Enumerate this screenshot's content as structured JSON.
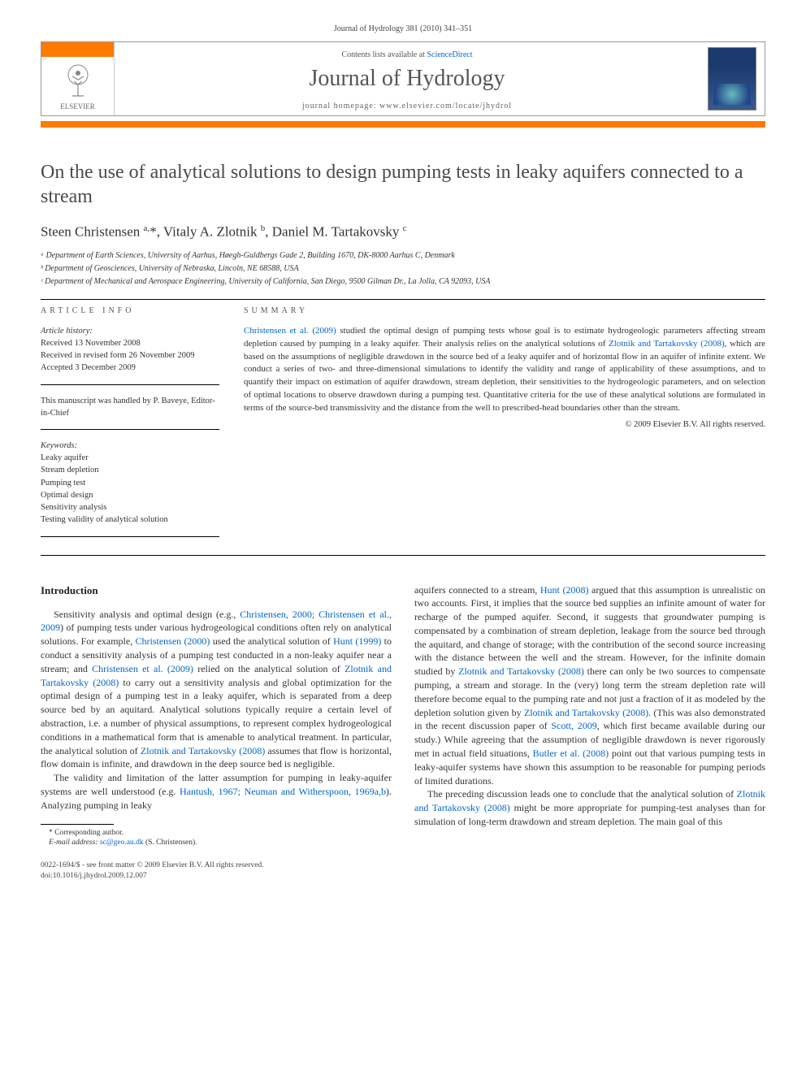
{
  "header": {
    "citation": "Journal of Hydrology 381 (2010) 341–351",
    "contents_prefix": "Contents lists available at ",
    "contents_link": "ScienceDirect",
    "journal_name": "Journal of Hydrology",
    "homepage_prefix": "journal homepage: ",
    "homepage_url": "www.elsevier.com/locate/jhydrol",
    "publisher_label": "ELSEVIER"
  },
  "article": {
    "title": "On the use of analytical solutions to design pumping tests in leaky aquifers connected to a stream",
    "authors_html": "Steen Christensen <sup>a,</sup>*, Vitaly A. Zlotnik <sup>b</sup>, Daniel M. Tartakovsky <sup>c</sup>",
    "affiliations": [
      "ᵃ Department of Earth Sciences, University of Aarhus, Høegh-Guldbergs Gade 2, Building 1670, DK-8000 Aarhus C, Denmark",
      "ᵇ Department of Geosciences, University of Nebraska, Lincoln, NE 68588, USA",
      "ᶜ Department of Mechanical and Aerospace Engineering, University of California, San Diego, 9500 Gilman Dr., La Jolla, CA 92093, USA"
    ]
  },
  "info": {
    "label": "ARTICLE INFO",
    "history_label": "Article history:",
    "history": [
      "Received 13 November 2008",
      "Received in revised form 26 November 2009",
      "Accepted 3 December 2009"
    ],
    "handled_by": "This manuscript was handled by P. Baveye, Editor-in-Chief",
    "keywords_label": "Keywords:",
    "keywords": [
      "Leaky aquifer",
      "Stream depletion",
      "Pumping test",
      "Optimal design",
      "Sensitivity analysis",
      "Testing validity of analytical solution"
    ]
  },
  "summary": {
    "label": "SUMMARY",
    "text_parts": [
      {
        "ref": true,
        "t": "Christensen et al. (2009)"
      },
      {
        "ref": false,
        "t": " studied the optimal design of pumping tests whose goal is to estimate hydrogeologic parameters affecting stream depletion caused by pumping in a leaky aquifer. Their analysis relies on the analytical solutions of "
      },
      {
        "ref": true,
        "t": "Zlotnik and Tartakovsky (2008)"
      },
      {
        "ref": false,
        "t": ", which are based on the assumptions of negligible drawdown in the source bed of a leaky aquifer and of horizontal flow in an aquifer of infinite extent. We conduct a series of two- and three-dimensional simulations to identify the validity and range of applicability of these assumptions, and to quantify their impact on estimation of aquifer drawdown, stream depletion, their sensitivities to the hydrogeologic parameters, and on selection of optimal locations to observe drawdown during a pumping test. Quantitative criteria for the use of these analytical solutions are formulated in terms of the source-bed transmissivity and the distance from the well to prescribed-head boundaries other than the stream."
      }
    ],
    "copyright": "© 2009 Elsevier B.V. All rights reserved."
  },
  "body": {
    "intro_heading": "Introduction",
    "p1": [
      {
        "ref": false,
        "t": "Sensitivity analysis and optimal design (e.g., "
      },
      {
        "ref": true,
        "t": "Christensen, 2000; Christensen et al., 2009"
      },
      {
        "ref": false,
        "t": ") of pumping tests under various hydrogeological conditions often rely on analytical solutions. For example, "
      },
      {
        "ref": true,
        "t": "Christensen (2000)"
      },
      {
        "ref": false,
        "t": " used the analytical solution of "
      },
      {
        "ref": true,
        "t": "Hunt (1999)"
      },
      {
        "ref": false,
        "t": " to conduct a sensitivity analysis of a pumping test conducted in a non-leaky aquifer near a stream; and "
      },
      {
        "ref": true,
        "t": "Christensen et al. (2009)"
      },
      {
        "ref": false,
        "t": " relied on the analytical solution of "
      },
      {
        "ref": true,
        "t": "Zlotnik and Tartakovsky (2008)"
      },
      {
        "ref": false,
        "t": " to carry out a sensitivity analysis and global optimization for the optimal design of a pumping test in a leaky aquifer, which is separated from a deep source bed by an aquitard. Analytical solutions typically require a certain level of abstraction, i.e. a number of physical assumptions, to represent complex hydrogeological conditions in a mathematical form that is amenable to analytical treatment. In particular, the analytical solution of "
      },
      {
        "ref": true,
        "t": "Zlotnik and Tartakovsky (2008)"
      },
      {
        "ref": false,
        "t": " assumes that flow is horizontal, flow domain is infinite, and drawdown in the deep source bed is negligible."
      }
    ],
    "p2": [
      {
        "ref": false,
        "t": "The validity and limitation of the latter assumption for pumping in leaky-aquifer systems are well understood (e.g. "
      },
      {
        "ref": true,
        "t": "Hantush, 1967; Neuman and Witherspoon, 1969a,b"
      },
      {
        "ref": false,
        "t": "). Analyzing pumping in leaky"
      }
    ],
    "p2b": [
      {
        "ref": false,
        "t": "aquifers connected to a stream, "
      },
      {
        "ref": true,
        "t": "Hunt (2008)"
      },
      {
        "ref": false,
        "t": " argued that this assumption is unrealistic on two accounts. First, it implies that the source bed supplies an infinite amount of water for recharge of the pumped aquifer. Second, it suggests that groundwater pumping is compensated by a combination of stream depletion, leakage from the source bed through the aquitard, and change of storage; with the contribution of the second source increasing with the distance between the well and the stream. However, for the infinite domain studied by "
      },
      {
        "ref": true,
        "t": "Zlotnik and Tartakovsky (2008)"
      },
      {
        "ref": false,
        "t": " there can only be two sources to compensate pumping, a stream and storage. In the (very) long term the stream depletion rate will therefore become equal to the pumping rate and not just a fraction of it as modeled by the depletion solution given by "
      },
      {
        "ref": true,
        "t": "Zlotnik and Tartakovsky (2008)"
      },
      {
        "ref": false,
        "t": ". (This was also demonstrated in the recent discussion paper of "
      },
      {
        "ref": true,
        "t": "Scott, 2009"
      },
      {
        "ref": false,
        "t": ", which first became available during our study.) While agreeing that the assumption of negligible drawdown is never rigorously met in actual field situations, "
      },
      {
        "ref": true,
        "t": "Butler et al. (2008)"
      },
      {
        "ref": false,
        "t": " point out that various pumping tests in leaky-aquifer systems have shown this assumption to be reasonable for pumping periods of limited durations."
      }
    ],
    "p3": [
      {
        "ref": false,
        "t": "The preceding discussion leads one to conclude that the analytical solution of "
      },
      {
        "ref": true,
        "t": "Zlotnik and Tartakovsky (2008)"
      },
      {
        "ref": false,
        "t": " might be more appropriate for pumping-test analyses than for simulation of long-term drawdown and stream depletion. The main goal of this"
      }
    ]
  },
  "footnote": {
    "corr": "* Corresponding author.",
    "email_label": "E-mail address: ",
    "email": "sc@geo.au.dk",
    "email_suffix": " (S. Christensen)."
  },
  "footer": {
    "line1": "0022-1694/$ - see front matter © 2009 Elsevier B.V. All rights reserved.",
    "line2": "doi:10.1016/j.jhydrol.2009.12.007"
  },
  "colors": {
    "accent": "#ff7a00",
    "link": "#0066cc"
  }
}
